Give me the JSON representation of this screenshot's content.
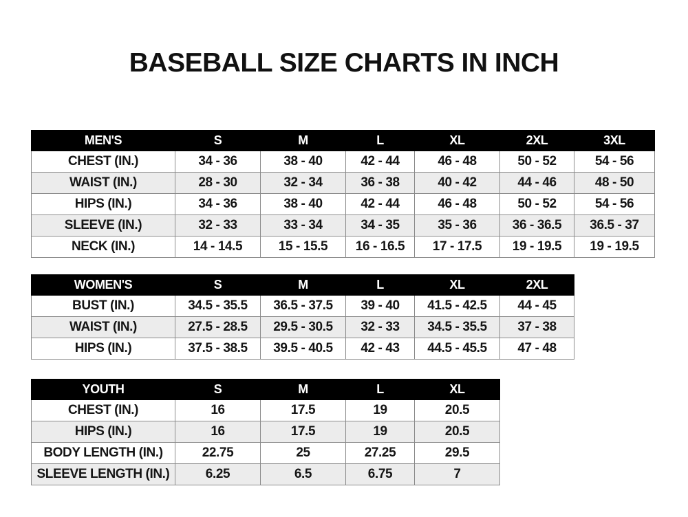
{
  "title": "BASEBALL SIZE CHARTS IN INCH",
  "tables": [
    {
      "id": "men",
      "header": [
        "MEN'S",
        "S",
        "M",
        "L",
        "XL",
        "2XL",
        "3XL"
      ],
      "rows": [
        [
          "CHEST (IN.)",
          "34 - 36",
          "38 - 40",
          "42 - 44",
          "46 - 48",
          "50 - 52",
          "54 - 56"
        ],
        [
          "WAIST (IN.)",
          "28 - 30",
          "32 - 34",
          "36 - 38",
          "40 - 42",
          "44 - 46",
          "48 - 50"
        ],
        [
          "HIPS (IN.)",
          "34 - 36",
          "38 - 40",
          "42 - 44",
          "46 - 48",
          "50 - 52",
          "54 - 56"
        ],
        [
          "SLEEVE (IN.)",
          "32 - 33",
          "33 - 34",
          "34 - 35",
          "35 - 36",
          "36 - 36.5",
          "36.5 - 37"
        ],
        [
          "NECK (IN.)",
          "14 - 14.5",
          "15 - 15.5",
          "16 - 16.5",
          "17 - 17.5",
          "19 - 19.5",
          "19 - 19.5"
        ]
      ]
    },
    {
      "id": "women",
      "header": [
        "WOMEN'S",
        "S",
        "M",
        "L",
        "XL",
        "2XL"
      ],
      "rows": [
        [
          "BUST (IN.)",
          "34.5 - 35.5",
          "36.5 - 37.5",
          "39 - 40",
          "41.5 - 42.5",
          "44 - 45"
        ],
        [
          "WAIST (IN.)",
          "27.5 - 28.5",
          "29.5 - 30.5",
          "32 - 33",
          "34.5 - 35.5",
          "37 - 38"
        ],
        [
          "HIPS (IN.)",
          "37.5 - 38.5",
          "39.5 - 40.5",
          "42 - 43",
          "44.5 - 45.5",
          "47 - 48"
        ]
      ]
    },
    {
      "id": "youth",
      "header": [
        "YOUTH",
        "S",
        "M",
        "L",
        "XL"
      ],
      "rows": [
        [
          "CHEST (IN.)",
          "16",
          "17.5",
          "19",
          "20.5"
        ],
        [
          "HIPS (IN.)",
          "16",
          "17.5",
          "19",
          "20.5"
        ],
        [
          "BODY LENGTH (IN.)",
          "22.75",
          "25",
          "27.25",
          "29.5"
        ],
        [
          "SLEEVE LENGTH (IN.)",
          "6.25",
          "6.5",
          "6.75",
          "7"
        ]
      ]
    }
  ],
  "colors": {
    "header_bg": "#000000",
    "header_text": "#ffffff",
    "alt_row_bg": "#ececec",
    "border": "#8a8a8a"
  }
}
